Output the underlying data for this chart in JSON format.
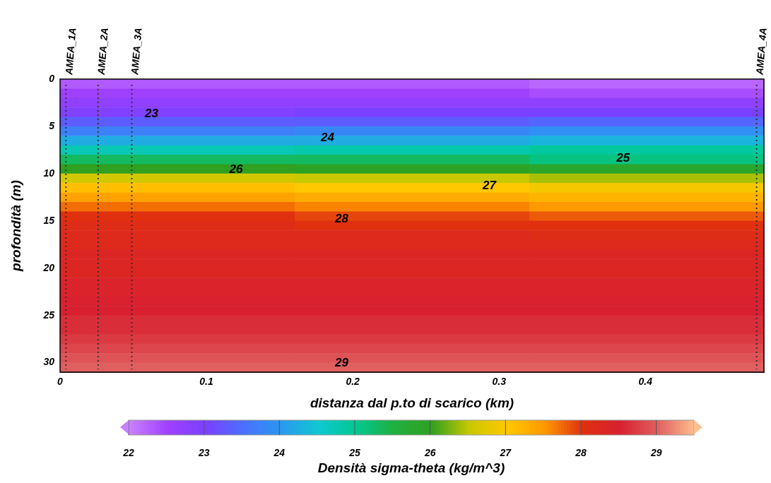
{
  "chart_data": {
    "type": "heatmap",
    "xlabel": "distanza dal p.to di scarico (km)",
    "ylabel": "profondità (m)",
    "clabel": "Densità sigma-theta (kg/m^3)",
    "xlim": [
      0,
      0.481
    ],
    "xticks": [
      0,
      0.1,
      0.2,
      0.3,
      0.4
    ],
    "ylim": [
      31,
      0
    ],
    "yticks": [
      0,
      5,
      10,
      15,
      20,
      25,
      30
    ],
    "clim": [
      22,
      29.5
    ],
    "cticks": [
      22,
      23,
      24,
      25,
      26,
      27,
      28,
      29
    ],
    "cells": [
      [
        22.3,
        22.3,
        22.2
      ],
      [
        22.5,
        22.5,
        22.4
      ],
      [
        22.7,
        22.7,
        22.7
      ],
      [
        22.9,
        23.0,
        23.0
      ],
      [
        23.3,
        23.3,
        23.4
      ],
      [
        23.7,
        23.8,
        23.9
      ],
      [
        24.2,
        24.2,
        24.3
      ],
      [
        24.7,
        24.8,
        24.9
      ],
      [
        25.3,
        25.3,
        25.1
      ],
      [
        26.0,
        25.9,
        25.8
      ],
      [
        26.6,
        26.5,
        26.4
      ],
      [
        27.1,
        27.0,
        26.9
      ],
      [
        27.4,
        27.3,
        27.2
      ],
      [
        27.7,
        27.6,
        27.5
      ],
      [
        28.0,
        27.9,
        27.8
      ],
      [
        28.1,
        28.0,
        28.0
      ],
      [
        28.2,
        28.2,
        28.1
      ],
      [
        28.2,
        28.2,
        28.2
      ],
      [
        28.3,
        28.3,
        28.3
      ],
      [
        28.3,
        28.3,
        28.3
      ],
      [
        28.3,
        28.3,
        28.3
      ],
      [
        28.4,
        28.4,
        28.4
      ],
      [
        28.4,
        28.4,
        28.4
      ],
      [
        28.5,
        28.5,
        28.5
      ],
      [
        28.5,
        28.5,
        28.5
      ],
      [
        28.6,
        28.6,
        28.6
      ],
      [
        28.6,
        28.6,
        28.6
      ],
      [
        28.7,
        28.7,
        28.7
      ],
      [
        28.8,
        28.8,
        28.8
      ],
      [
        28.9,
        28.9,
        28.9
      ],
      [
        29.0,
        29.0,
        29.0
      ]
    ],
    "ref_lines": [
      {
        "axis": "x",
        "value": 0.004,
        "label": "AMEA_1A",
        "color": "#333333",
        "line_style": "dotted"
      },
      {
        "axis": "x",
        "value": 0.026,
        "label": "AMEA_2A",
        "color": "#333333",
        "line_style": "dotted"
      },
      {
        "axis": "x",
        "value": 0.049,
        "label": "AMEA_3A",
        "color": "#333333",
        "line_style": "dotted"
      },
      {
        "axis": "x",
        "value": 0.476,
        "label": "AMEA_4A",
        "color": "#333333",
        "line_style": "dotted"
      }
    ],
    "annotations": [
      "23",
      "24",
      "25",
      "26",
      "27",
      "28",
      "29"
    ],
    "grid": false,
    "legend": false
  }
}
